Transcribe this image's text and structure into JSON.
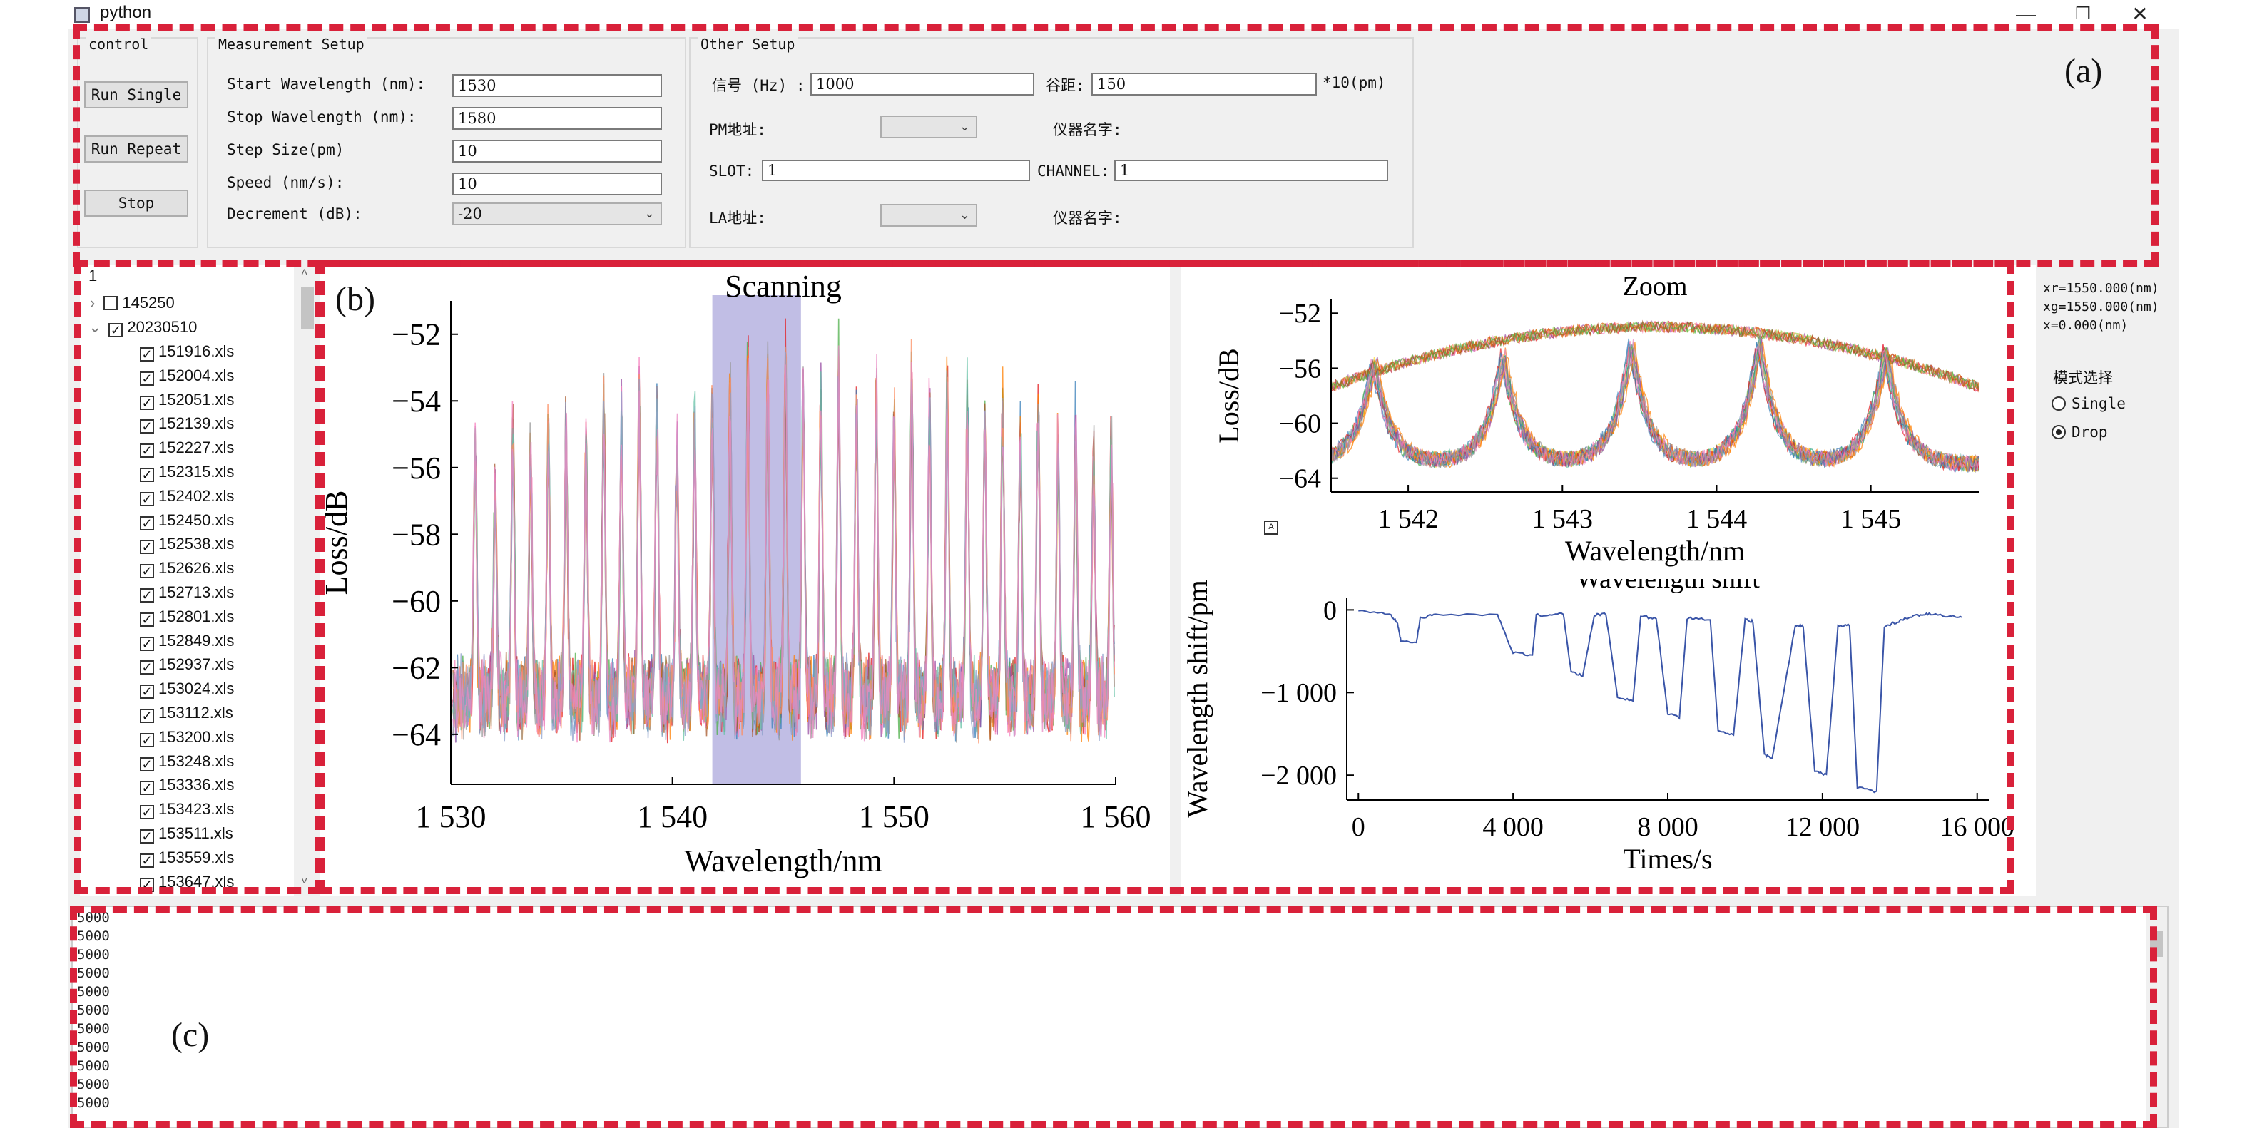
{
  "window": {
    "title": "python",
    "minimize": "—",
    "restore": "❐",
    "close": "✕"
  },
  "control": {
    "title": "control",
    "run_single": "Run Single",
    "run_repeat": "Run Repeat",
    "stop": "Stop"
  },
  "measurement": {
    "title": "Measurement Setup",
    "start_label": "Start Wavelength (nm):",
    "start_value": "1530",
    "stop_label": "Stop Wavelength (nm):",
    "stop_value": "1580",
    "step_label": "Step Size(pm)",
    "step_value": "10",
    "speed_label": "Speed (nm/s):",
    "speed_value": "10",
    "decrement_label": "Decrement (dB):",
    "decrement_value": "-20"
  },
  "other": {
    "title": "Other Setup",
    "signal_label": "信号 (Hz) :",
    "signal_value": "1000",
    "valley_label": "谷距:",
    "valley_value": "150",
    "valley_unit": "*10(pm)",
    "pm_label": "PM地址:",
    "pm_value": "",
    "instrument1_label": "仪器名字:",
    "slot_label": "SLOT:",
    "slot_value": "1",
    "channel_label": "CHANNEL:",
    "channel_value": "1",
    "la_label": "LA地址:",
    "la_value": "",
    "instrument2_label": "仪器名字:"
  },
  "panel_labels": {
    "a": "(a)",
    "b": "(b)",
    "c": "(c)"
  },
  "tree": {
    "header": "1",
    "folder1": "145250",
    "folder2": "20230510",
    "files": [
      "151916.xls",
      "152004.xls",
      "152051.xls",
      "152139.xls",
      "152227.xls",
      "152315.xls",
      "152402.xls",
      "152450.xls",
      "152538.xls",
      "152626.xls",
      "152713.xls",
      "152801.xls",
      "152849.xls",
      "152937.xls",
      "153024.xls",
      "153112.xls",
      "153200.xls",
      "153248.xls",
      "153336.xls",
      "153423.xls",
      "153511.xls",
      "153559.xls",
      "153647.xls"
    ]
  },
  "readout": {
    "xr": "xr=1550.000(nm)",
    "xg": "xg=1550.000(nm)",
    "x": "x=0.000(nm)"
  },
  "mode": {
    "title": "模式选择",
    "single": "Single",
    "drop": "Drop",
    "selected": "Drop"
  },
  "log": {
    "lines": [
      "5000",
      "5000",
      "5000",
      "5000",
      "5000",
      "5000",
      "5000",
      "5000",
      "5000",
      "5000",
      "5000"
    ]
  },
  "colors": {
    "dash": "#d9213a",
    "scan_band": "#b6b3e0",
    "shift_line": "#3a55a8"
  },
  "chart_data": [
    {
      "type": "line",
      "title": "Scanning",
      "xlabel": "Wavelength/nm",
      "ylabel": "Loss/dB",
      "xlim": [
        1530,
        1560
      ],
      "ylim": [
        -65.5,
        -51
      ],
      "xticks": [
        1530,
        1540,
        1550,
        1560
      ],
      "xtick_labels": [
        "1 530",
        "1 540",
        "1 550",
        "1 560"
      ],
      "yticks": [
        -52,
        -54,
        -56,
        -58,
        -60,
        -62,
        -64
      ],
      "highlight_band": [
        1541.8,
        1545.8
      ],
      "peaks": [
        {
          "x": 1531.1,
          "y": -54.5
        },
        {
          "x": 1532.0,
          "y": -55.8
        },
        {
          "x": 1532.8,
          "y": -53.8
        },
        {
          "x": 1533.6,
          "y": -54.8
        },
        {
          "x": 1534.4,
          "y": -54.2
        },
        {
          "x": 1535.2,
          "y": -53.9
        },
        {
          "x": 1536.1,
          "y": -54.4
        },
        {
          "x": 1536.9,
          "y": -53.3
        },
        {
          "x": 1537.7,
          "y": -53.8
        },
        {
          "x": 1538.5,
          "y": -52.8
        },
        {
          "x": 1539.3,
          "y": -53.4
        },
        {
          "x": 1540.2,
          "y": -54.5
        },
        {
          "x": 1541.0,
          "y": -54.0
        },
        {
          "x": 1541.8,
          "y": -53.3
        },
        {
          "x": 1542.6,
          "y": -52.7
        },
        {
          "x": 1543.4,
          "y": -52.2
        },
        {
          "x": 1544.3,
          "y": -52.0
        },
        {
          "x": 1545.1,
          "y": -51.8
        },
        {
          "x": 1545.9,
          "y": -52.6
        },
        {
          "x": 1546.7,
          "y": -53.1
        },
        {
          "x": 1547.5,
          "y": -52.4
        },
        {
          "x": 1548.3,
          "y": -53.2
        },
        {
          "x": 1549.2,
          "y": -52.9
        },
        {
          "x": 1550.0,
          "y": -53.6
        },
        {
          "x": 1550.8,
          "y": -52.4
        },
        {
          "x": 1551.6,
          "y": -53.4
        },
        {
          "x": 1552.4,
          "y": -52.5
        },
        {
          "x": 1553.3,
          "y": -53.2
        },
        {
          "x": 1554.1,
          "y": -53.9
        },
        {
          "x": 1554.9,
          "y": -53.0
        },
        {
          "x": 1555.7,
          "y": -54.2
        },
        {
          "x": 1556.5,
          "y": -53.2
        },
        {
          "x": 1557.4,
          "y": -54.6
        },
        {
          "x": 1558.2,
          "y": -54.0
        },
        {
          "x": 1559.0,
          "y": -54.9
        },
        {
          "x": 1559.8,
          "y": -54.4
        }
      ],
      "baseline": [
        -63.5,
        -61.5
      ]
    },
    {
      "type": "line",
      "title": "Zoom",
      "xlabel": "Wavelength/nm",
      "ylabel": "Loss/dB",
      "xlim": [
        1541.5,
        1545.7
      ],
      "ylim": [
        -65,
        -51
      ],
      "xticks": [
        1542,
        1543,
        1544,
        1545
      ],
      "xtick_labels": [
        "1 542",
        "1 543",
        "1 544",
        "1 545"
      ],
      "yticks": [
        -52,
        -56,
        -60,
        -64
      ],
      "peaks": [
        {
          "x": 1541.78,
          "y": -55.5
        },
        {
          "x": 1542.62,
          "y": -55.0
        },
        {
          "x": 1543.45,
          "y": -54.2
        },
        {
          "x": 1544.28,
          "y": -54.0
        },
        {
          "x": 1545.1,
          "y": -54.6
        }
      ],
      "valley_floor": -63
    },
    {
      "type": "line",
      "title": "Wavelength shift",
      "xlabel": "Times/s",
      "ylabel": "Wavelength shift/pm",
      "xlim": [
        -300,
        16300
      ],
      "ylim": [
        -2300,
        150
      ],
      "xticks": [
        0,
        4000,
        8000,
        12000,
        16000
      ],
      "xtick_labels": [
        "0",
        "4 000",
        "8 000",
        "12 000",
        "16 000"
      ],
      "yticks": [
        0,
        -1000,
        -2000
      ],
      "ytick_labels": [
        "0",
        "−1 000",
        "−2 000"
      ],
      "series": [
        {
          "x": [
            0,
            800,
            1000,
            1100,
            1500,
            1600,
            2000,
            3600,
            3800,
            4000,
            4500,
            4600,
            4900,
            5300,
            5500,
            5800,
            6100,
            6400,
            6700,
            7100,
            7300,
            7700,
            8000,
            8300,
            8500,
            9100,
            9300,
            9700,
            10000,
            10200,
            10500,
            10700,
            11300,
            11500,
            11800,
            12100,
            12400,
            12700,
            12900,
            13400,
            13600,
            13900,
            14200,
            14500,
            14800,
            15300,
            15600
          ],
          "y": [
            0,
            -50,
            -150,
            -380,
            -400,
            -100,
            -50,
            -60,
            -300,
            -520,
            -550,
            -60,
            -70,
            -40,
            -750,
            -800,
            -60,
            -50,
            -1050,
            -1100,
            -80,
            -100,
            -1250,
            -1300,
            -100,
            -120,
            -1450,
            -1520,
            -120,
            -140,
            -1750,
            -1800,
            -180,
            -200,
            -1950,
            -2000,
            -200,
            -180,
            -2150,
            -2200,
            -200,
            -150,
            -100,
            -60,
            -50,
            -80,
            -90
          ]
        }
      ]
    }
  ]
}
